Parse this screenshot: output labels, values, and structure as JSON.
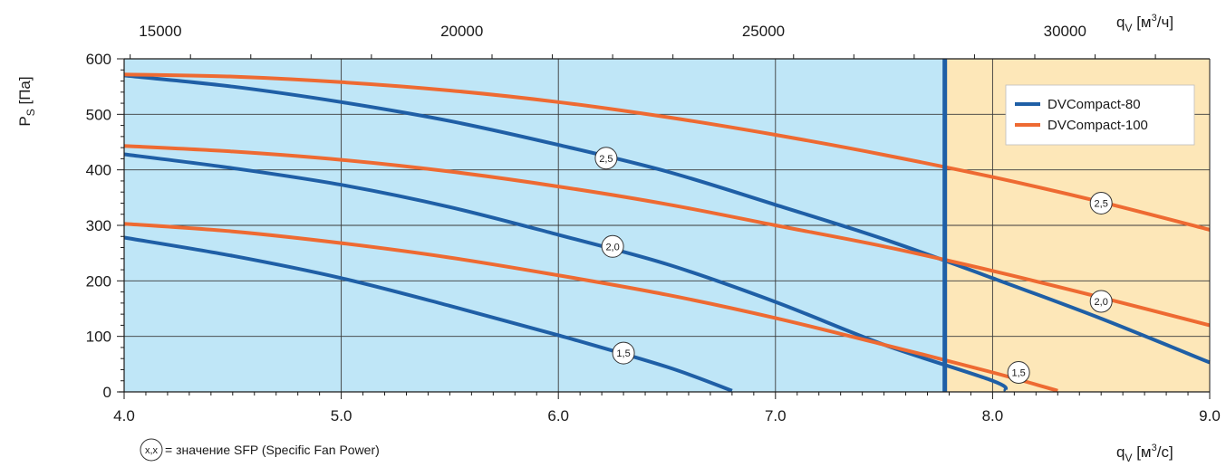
{
  "chart_data": {
    "type": "line",
    "x_axis": {
      "label_main": "q",
      "label_sub": "V",
      "label_unit_before": " [м",
      "label_unit_sup": "3",
      "label_unit_after": "/с]",
      "range": [
        4.0,
        9.0
      ],
      "ticks": [
        4.0,
        5.0,
        6.0,
        7.0,
        8.0,
        9.0
      ],
      "tick_labels": [
        "4.0",
        "5.0",
        "6.0",
        "7.0",
        "8.0",
        "9.0"
      ]
    },
    "x2_axis": {
      "label_main": "q",
      "label_sub": "V",
      "label_unit_before": " [м",
      "label_unit_sup": "3",
      "label_unit_after": "/ч]",
      "ticks": [
        15000,
        20000,
        25000,
        30000
      ],
      "tick_labels": [
        "15000",
        "20000",
        "25000",
        "30000"
      ]
    },
    "y_axis": {
      "label_main": "P",
      "label_sub": "S",
      "label_unit": " [Па]",
      "range": [
        0,
        600
      ],
      "ticks": [
        0,
        100,
        200,
        300,
        400,
        500,
        600
      ],
      "tick_labels": [
        "0",
        "100",
        "200",
        "300",
        "400",
        "500",
        "600"
      ]
    },
    "grid": true,
    "regions": [
      {
        "x_from": 4.0,
        "x_to": 7.78,
        "color": "#bfe6f7"
      },
      {
        "x_from": 7.78,
        "x_to": 9.0,
        "color": "#fde7b8"
      }
    ],
    "vertical_marker": {
      "x": 7.78,
      "color": "#1f5fa6"
    },
    "legend_position": "top-right",
    "series": [
      {
        "name": "DVCompact-80",
        "color": "#1f5fa6",
        "curves": [
          {
            "sfp": "1,5",
            "label_at": [
              6.3,
              70
            ],
            "points": [
              [
                4.0,
                278
              ],
              [
                4.5,
                245
              ],
              [
                5.0,
                205
              ],
              [
                5.5,
                155
              ],
              [
                6.0,
                102
              ],
              [
                6.5,
                45
              ],
              [
                6.8,
                2
              ]
            ]
          },
          {
            "sfp": "2,0",
            "label_at": [
              6.25,
              262
            ],
            "points": [
              [
                4.0,
                428
              ],
              [
                4.5,
                403
              ],
              [
                5.0,
                373
              ],
              [
                5.5,
                333
              ],
              [
                6.0,
                283
              ],
              [
                6.5,
                230
              ],
              [
                7.0,
                162
              ],
              [
                7.5,
                85
              ],
              [
                8.0,
                20
              ],
              [
                8.06,
                2
              ]
            ]
          },
          {
            "sfp": "2,5",
            "label_at": [
              6.22,
              421
            ],
            "points": [
              [
                4.0,
                570
              ],
              [
                4.5,
                550
              ],
              [
                5.0,
                522
              ],
              [
                5.5,
                488
              ],
              [
                6.0,
                445
              ],
              [
                6.5,
                397
              ],
              [
                7.0,
                337
              ],
              [
                7.5,
                275
              ],
              [
                8.0,
                205
              ],
              [
                8.5,
                132
              ],
              [
                9.0,
                53
              ]
            ]
          }
        ]
      },
      {
        "name": "DVCompact-100",
        "color": "#ee6a32",
        "curves": [
          {
            "sfp": "1,5",
            "label_at": [
              8.12,
              35
            ],
            "points": [
              [
                4.0,
                303
              ],
              [
                4.5,
                289
              ],
              [
                5.0,
                268
              ],
              [
                5.5,
                242
              ],
              [
                6.0,
                210
              ],
              [
                6.5,
                175
              ],
              [
                7.0,
                133
              ],
              [
                7.5,
                85
              ],
              [
                8.0,
                35
              ],
              [
                8.3,
                2
              ]
            ]
          },
          {
            "sfp": "2,0",
            "label_at": [
              8.5,
              163
            ],
            "points": [
              [
                4.0,
                443
              ],
              [
                4.5,
                433
              ],
              [
                5.0,
                418
              ],
              [
                5.5,
                397
              ],
              [
                6.0,
                370
              ],
              [
                6.5,
                338
              ],
              [
                7.0,
                300
              ],
              [
                7.5,
                262
              ],
              [
                8.0,
                218
              ],
              [
                8.5,
                170
              ],
              [
                9.0,
                120
              ]
            ]
          },
          {
            "sfp": "2,5",
            "label_at": [
              8.5,
              340
            ],
            "points": [
              [
                4.0,
                572
              ],
              [
                4.5,
                568
              ],
              [
                5.0,
                558
              ],
              [
                5.5,
                543
              ],
              [
                6.0,
                522
              ],
              [
                6.5,
                495
              ],
              [
                7.0,
                463
              ],
              [
                7.5,
                427
              ],
              [
                8.0,
                387
              ],
              [
                8.5,
                342
              ],
              [
                9.0,
                292
              ]
            ]
          }
        ]
      }
    ],
    "note": {
      "symbol": "x,x",
      "text": "= значение SFP (Specific Fan Power)"
    }
  }
}
